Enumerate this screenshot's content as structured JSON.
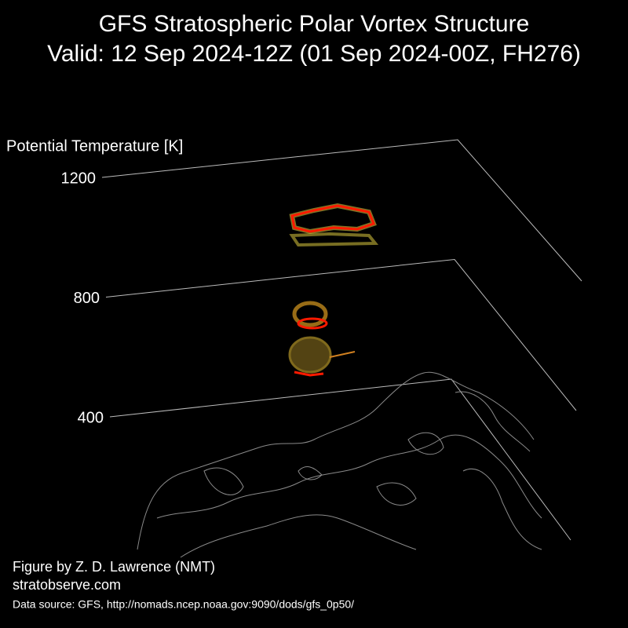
{
  "chart_data": {
    "type": "vortex3d",
    "title": "GFS Stratospheric Polar Vortex Structure",
    "subtitle": "Valid: 12 Sep 2024-12Z  (01 Sep 2024-00Z, FH276)",
    "zlabel": "Potential Temperature [K]",
    "zlim": [
      400,
      1200
    ],
    "zticks": [
      400,
      800,
      1200
    ],
    "credit": "Figure by Z. D. Lawrence (NMT)",
    "website": "stratobserve.com",
    "source": "Data source: GFS, http://nomads.ncep.noaa.gov:9090/dods/gfs_0p50/"
  }
}
